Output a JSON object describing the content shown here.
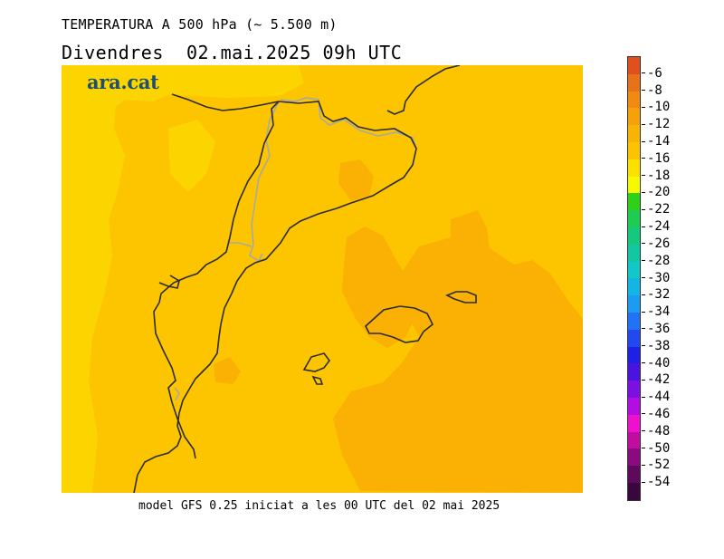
{
  "title": "TEMPERATURA A 500 hPa (~ 5.500 m)",
  "subtitle": "Divendres  02.mai.2025 09h UTC",
  "logo_text": "ara.cat",
  "footer": "model GFS 0.25 iniciat a les 00 UTC del 02 mai 2025",
  "colorbar": {
    "labels": [
      "-6",
      "-8",
      "-10",
      "-12",
      "-14",
      "-16",
      "-18",
      "-20",
      "-22",
      "-24",
      "-26",
      "-28",
      "-30",
      "-32",
      "-34",
      "-36",
      "-38",
      "-40",
      "-42",
      "-44",
      "-46",
      "-48",
      "-50",
      "-52",
      "-54"
    ],
    "colors": [
      "#e0501e",
      "#e8721a",
      "#f08a12",
      "#f5a20a",
      "#f8b404",
      "#fcc400",
      "#fbe000",
      "#f6f900",
      "#2fd01a",
      "#1ecc54",
      "#14c87e",
      "#12c8a4",
      "#10c8c8",
      "#12b6e2",
      "#1c9cf0",
      "#2272f6",
      "#2248f0",
      "#1e20e6",
      "#4a14de",
      "#7a10e2",
      "#b20ee2",
      "#ee10cc",
      "#c00ca0",
      "#8a0a80",
      "#5e085e",
      "#3a0640"
    ]
  },
  "map": {
    "colors": {
      "base": "#fdc500",
      "warmer": "#fbb004",
      "cooler": "#fcd500",
      "coast": "#2b2b2b",
      "border": "#a8a8a8"
    }
  }
}
